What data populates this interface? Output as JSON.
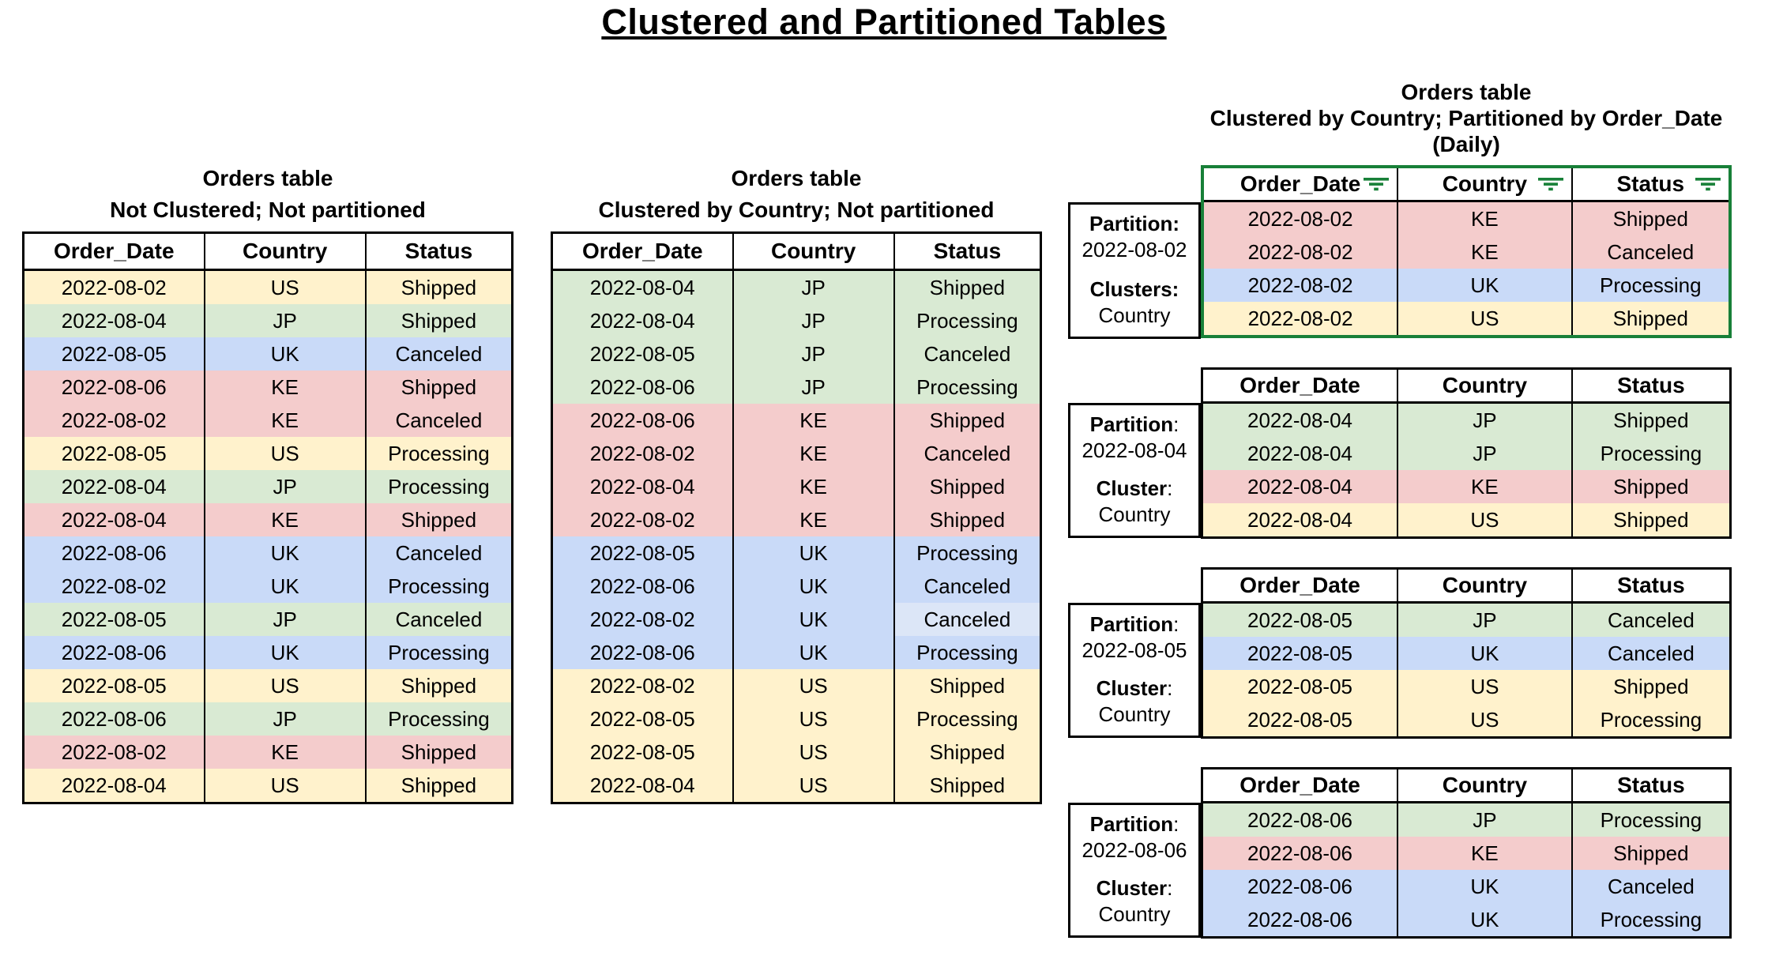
{
  "title": "Clustered and Partitioned Tables",
  "columns": [
    "Order_Date",
    "Country",
    "Status"
  ],
  "country_colors": {
    "US": "#fff2cc",
    "JP": "#d9ead3",
    "UK": "#c9daf8",
    "KE": "#f4cccc"
  },
  "accent": {
    "partitioned_table_border": "#188038",
    "filter_icon_color": "#188038",
    "table_border": "#000000",
    "status_cell_light_blue": "#dce6f7"
  },
  "left_table": {
    "title": "Orders table",
    "subtitle": "Not Clustered; Not partitioned",
    "rows": [
      [
        "2022-08-02",
        "US",
        "Shipped"
      ],
      [
        "2022-08-04",
        "JP",
        "Shipped"
      ],
      [
        "2022-08-05",
        "UK",
        "Canceled"
      ],
      [
        "2022-08-06",
        "KE",
        "Shipped"
      ],
      [
        "2022-08-02",
        "KE",
        "Canceled"
      ],
      [
        "2022-08-05",
        "US",
        "Processing"
      ],
      [
        "2022-08-04",
        "JP",
        "Processing"
      ],
      [
        "2022-08-04",
        "KE",
        "Shipped"
      ],
      [
        "2022-08-06",
        "UK",
        "Canceled"
      ],
      [
        "2022-08-02",
        "UK",
        "Processing"
      ],
      [
        "2022-08-05",
        "JP",
        "Canceled"
      ],
      [
        "2022-08-06",
        "UK",
        "Processing"
      ],
      [
        "2022-08-05",
        "US",
        "Shipped"
      ],
      [
        "2022-08-06",
        "JP",
        "Processing"
      ],
      [
        "2022-08-02",
        "KE",
        "Shipped"
      ],
      [
        "2022-08-04",
        "US",
        "Shipped"
      ]
    ]
  },
  "middle_table": {
    "title": "Orders table",
    "subtitle": "Clustered by Country; Not partitioned",
    "rows": [
      [
        "2022-08-04",
        "JP",
        "Shipped"
      ],
      [
        "2022-08-04",
        "JP",
        "Processing"
      ],
      [
        "2022-08-05",
        "JP",
        "Canceled"
      ],
      [
        "2022-08-06",
        "JP",
        "Processing"
      ],
      [
        "2022-08-06",
        "KE",
        "Shipped"
      ],
      [
        "2022-08-02",
        "KE",
        "Canceled"
      ],
      [
        "2022-08-04",
        "KE",
        "Shipped"
      ],
      [
        "2022-08-02",
        "KE",
        "Shipped"
      ],
      [
        "2022-08-05",
        "UK",
        "Processing"
      ],
      [
        "2022-08-06",
        "UK",
        "Canceled"
      ],
      [
        "2022-08-02",
        "UK",
        "Canceled"
      ],
      [
        "2022-08-06",
        "UK",
        "Processing"
      ],
      [
        "2022-08-02",
        "US",
        "Shipped"
      ],
      [
        "2022-08-05",
        "US",
        "Processing"
      ],
      [
        "2022-08-05",
        "US",
        "Shipped"
      ],
      [
        "2022-08-04",
        "US",
        "Shipped"
      ]
    ],
    "status_overrides": {
      "10": "#dce6f7"
    }
  },
  "right_group": {
    "title": "Orders table",
    "subtitle": "Clustered by Country; Partitioned by Order_Date (Daily)",
    "partitions": [
      {
        "partition_label": "Partition:",
        "partition_label_suffix": "",
        "partition_value": "2022-08-02",
        "cluster_label": "Clusters:",
        "cluster_label_suffix": "",
        "cluster_value": "Country",
        "highlighted": true,
        "filter_icons": true,
        "rows": [
          [
            "2022-08-02",
            "KE",
            "Shipped"
          ],
          [
            "2022-08-02",
            "KE",
            "Canceled"
          ],
          [
            "2022-08-02",
            "UK",
            "Processing"
          ],
          [
            "2022-08-02",
            "US",
            "Shipped"
          ]
        ]
      },
      {
        "partition_label": "Partition",
        "partition_label_suffix": ":",
        "partition_value": "2022-08-04",
        "cluster_label": "Cluster",
        "cluster_label_suffix": ":",
        "cluster_value": "Country",
        "highlighted": false,
        "filter_icons": false,
        "rows": [
          [
            "2022-08-04",
            "JP",
            "Shipped"
          ],
          [
            "2022-08-04",
            "JP",
            "Processing"
          ],
          [
            "2022-08-04",
            "KE",
            "Shipped"
          ],
          [
            "2022-08-04",
            "US",
            "Shipped"
          ]
        ]
      },
      {
        "partition_label": "Partition",
        "partition_label_suffix": ":",
        "partition_value": "2022-08-05",
        "cluster_label": "Cluster",
        "cluster_label_suffix": ":",
        "cluster_value": "Country",
        "highlighted": false,
        "filter_icons": false,
        "rows": [
          [
            "2022-08-05",
            "JP",
            "Canceled"
          ],
          [
            "2022-08-05",
            "UK",
            "Canceled"
          ],
          [
            "2022-08-05",
            "US",
            "Shipped"
          ],
          [
            "2022-08-05",
            "US",
            "Processing"
          ]
        ]
      },
      {
        "partition_label": "Partition",
        "partition_label_suffix": ":",
        "partition_value": "2022-08-06",
        "cluster_label": "Cluster",
        "cluster_label_suffix": ":",
        "cluster_value": "Country",
        "highlighted": false,
        "filter_icons": false,
        "rows": [
          [
            "2022-08-06",
            "JP",
            "Processing"
          ],
          [
            "2022-08-06",
            "KE",
            "Shipped"
          ],
          [
            "2022-08-06",
            "UK",
            "Canceled"
          ],
          [
            "2022-08-06",
            "UK",
            "Processing"
          ]
        ]
      }
    ]
  }
}
